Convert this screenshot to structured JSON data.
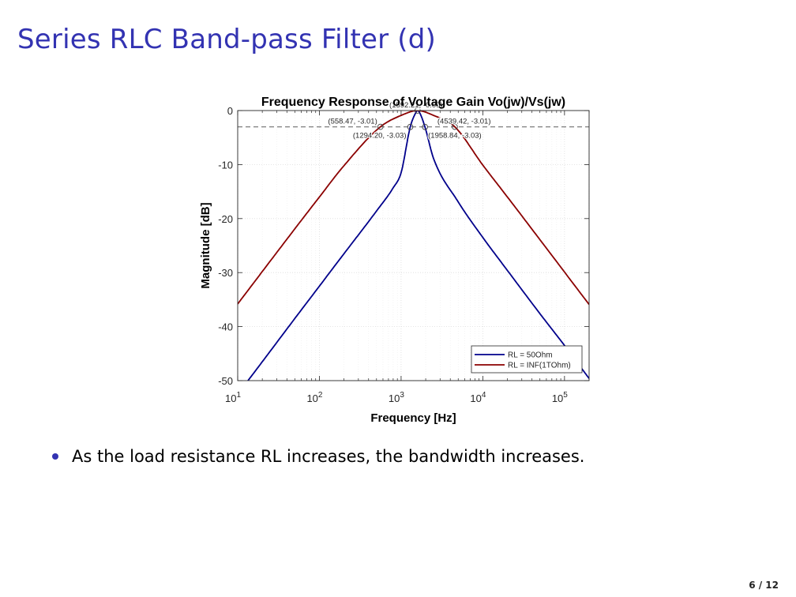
{
  "slide": {
    "title": "Series RLC Band-pass Filter (d)",
    "bullet": "As the load resistance RL increases, the bandwidth increases.",
    "page_number": "6 / 12"
  },
  "chart_data": {
    "type": "line",
    "title": "Frequency Response of Voltage Gain Vo(jw)/Vs(jw)",
    "xlabel": "Frequency [Hz]",
    "ylabel": "Magnitude [dB]",
    "xscale": "log",
    "xlim": [
      10,
      200000
    ],
    "ylim": [
      -50,
      0
    ],
    "x_tick_labels": [
      "10^1",
      "10^2",
      "10^3",
      "10^4",
      "10^5"
    ],
    "y_ticks": [
      0,
      -10,
      -20,
      -30,
      -40,
      -50
    ],
    "grid": true,
    "legend_position": "bottom-right",
    "reference_line_db": -3.01,
    "series": [
      {
        "name": "RL = 50Ohm",
        "color": "#00008b",
        "x": [
          10,
          20,
          50,
          100,
          200,
          500,
          800,
          1000,
          1294.2,
          1500,
          1592.21,
          1700,
          1958.84,
          2500,
          5000,
          10000,
          20000,
          50000,
          100000,
          200000
        ],
        "y": [
          -52.5,
          -46.5,
          -38.5,
          -32.5,
          -26.5,
          -18.6,
          -14.3,
          -11.5,
          -3.03,
          -0.5,
          -0.0,
          -0.5,
          -3.03,
          -8.9,
          -16.9,
          -23.5,
          -29.6,
          -37.6,
          -43.5,
          -49.6
        ]
      },
      {
        "name": "RL = INF(1TOhm)",
        "color": "#8b0000",
        "x": [
          10,
          20,
          50,
          100,
          200,
          558.47,
          1000,
          1592.21,
          2500,
          4539.42,
          10000,
          20000,
          50000,
          100000,
          200000
        ],
        "y": [
          -35.8,
          -29.8,
          -21.9,
          -16.0,
          -10.2,
          -3.01,
          -0.9,
          0.0,
          -0.9,
          -3.01,
          -10.1,
          -16.0,
          -23.9,
          -29.9,
          -35.9
        ]
      }
    ],
    "annotations": [
      {
        "x": 558.47,
        "y": -3.01,
        "text": "(558.47, -3.01)"
      },
      {
        "x": 1592.21,
        "y": -0.0,
        "text": "(1592.21, -0.00)"
      },
      {
        "x": 4539.42,
        "y": -3.01,
        "text": "(4539.42, -3.01)"
      },
      {
        "x": 1294.2,
        "y": -3.03,
        "text": "(1294.20, -3.03)"
      },
      {
        "x": 1958.84,
        "y": -3.03,
        "text": "(1958.84, -3.03)"
      }
    ]
  }
}
